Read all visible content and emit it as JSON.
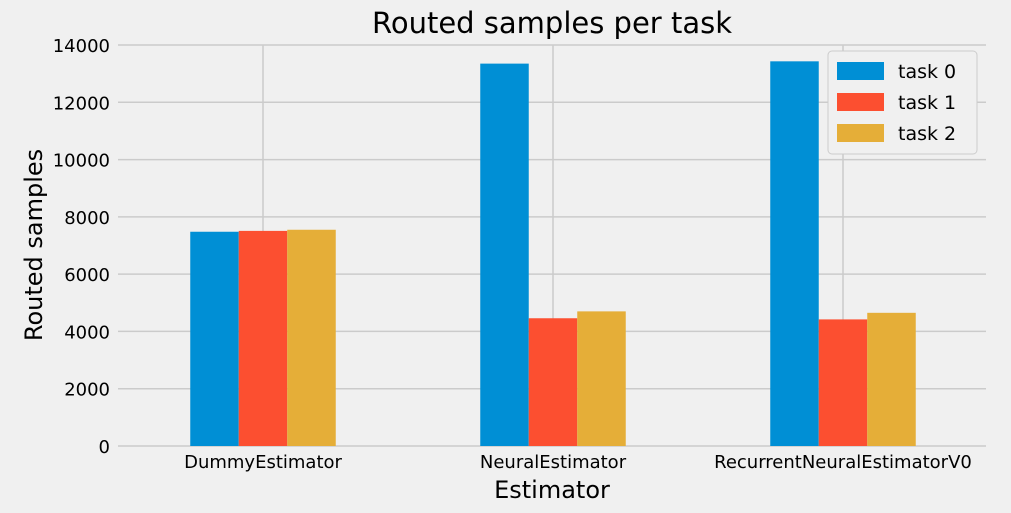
{
  "chart_data": {
    "type": "bar",
    "title": "Routed samples per task",
    "xlabel": "Estimator",
    "ylabel": "Routed samples",
    "categories": [
      "DummyEstimator",
      "NeuralEstimator",
      "RecurrentNeuralEstimatorV0"
    ],
    "series": [
      {
        "name": "task 0",
        "color": "#008fd5",
        "values": [
          7480,
          13350,
          13430
        ]
      },
      {
        "name": "task 1",
        "color": "#fc4f30",
        "values": [
          7510,
          4460,
          4420
        ]
      },
      {
        "name": "task 2",
        "color": "#e5ae38",
        "values": [
          7550,
          4700,
          4650
        ]
      }
    ],
    "ylim": [
      0,
      14000
    ],
    "yticks": [
      0,
      2000,
      4000,
      6000,
      8000,
      10000,
      12000,
      14000
    ],
    "grid": true,
    "legend_position": "top-right",
    "background": "#f0f0f0"
  }
}
